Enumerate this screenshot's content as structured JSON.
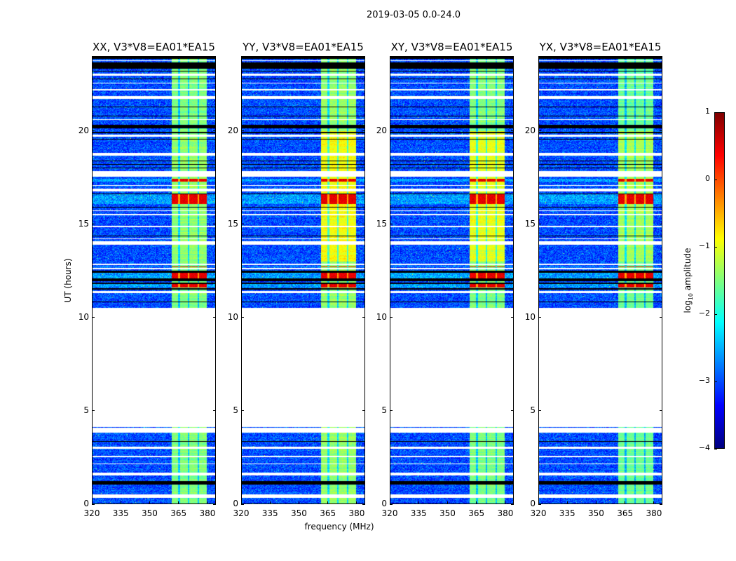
{
  "chart_data": {
    "type": "heatmap",
    "title": "2019-03-05 0.0-24.0",
    "xlabel": "frequency (MHz)",
    "ylabel": "UT (hours)",
    "xlim": [
      320,
      384.4
    ],
    "ylim": [
      0,
      24
    ],
    "xticks": [
      320,
      335,
      350,
      365,
      380
    ],
    "yticks": [
      0,
      5,
      10,
      15,
      20
    ],
    "panels": [
      {
        "title": "XX, V3*V8=EA01*EA15",
        "rfi_level": -1.5,
        "rfi_bright_level": -1.4
      },
      {
        "title": "YY, V3*V8=EA01*EA15",
        "rfi_level": -1.4,
        "rfi_bright_level": -0.9
      },
      {
        "title": "XY, V3*V8=EA01*EA15",
        "rfi_level": -1.5,
        "rfi_bright_level": -1.0
      },
      {
        "title": "YX, V3*V8=EA01*EA15",
        "rfi_level": -1.6,
        "rfi_bright_level": -1.3
      }
    ],
    "background_level": -3.0,
    "rfi_band_mhz": [
      361.5,
      380
    ],
    "rfi_dark_channels_mhz": [
      365.5,
      370.5,
      375.5
    ],
    "bright_hours": [
      13.0,
      20.0
    ],
    "time_segments": [
      {
        "from": 0.3,
        "to": 0.5,
        "state": "flagged"
      },
      {
        "from": 1.0,
        "to": 1.2,
        "state": "zero"
      },
      {
        "from": 1.5,
        "to": 1.65,
        "state": "flagged"
      },
      {
        "from": 2.1,
        "to": 2.15,
        "state": "flagged"
      },
      {
        "from": 2.5,
        "to": 2.55,
        "state": "flagged"
      },
      {
        "from": 2.95,
        "to": 3.05,
        "state": "flagged"
      },
      {
        "from": 3.3,
        "to": 3.35,
        "state": "zero"
      },
      {
        "from": 3.8,
        "to": 4.07,
        "state": "flagged"
      },
      {
        "from": 4.12,
        "to": 10.5,
        "state": "flagged"
      },
      {
        "from": 10.8,
        "to": 10.85,
        "state": "zero"
      },
      {
        "from": 11.3,
        "to": 11.4,
        "state": "flagged"
      },
      {
        "from": 11.5,
        "to": 11.55,
        "state": "zero"
      },
      {
        "from": 11.6,
        "to": 11.8,
        "state": "strong"
      },
      {
        "from": 11.8,
        "to": 11.85,
        "state": "zero"
      },
      {
        "from": 11.95,
        "to": 12.1,
        "state": "zero"
      },
      {
        "from": 12.1,
        "to": 12.4,
        "state": "strong"
      },
      {
        "from": 12.4,
        "to": 12.5,
        "state": "zero"
      },
      {
        "from": 12.6,
        "to": 12.65,
        "state": "flagged"
      },
      {
        "from": 12.7,
        "to": 12.75,
        "state": "strong"
      },
      {
        "from": 12.8,
        "to": 12.9,
        "state": "flagged"
      },
      {
        "from": 13.9,
        "to": 14.1,
        "state": "flagged"
      },
      {
        "from": 14.2,
        "to": 14.25,
        "state": "flagged"
      },
      {
        "from": 14.35,
        "to": 14.4,
        "state": "zero"
      },
      {
        "from": 14.85,
        "to": 14.92,
        "state": "flagged"
      },
      {
        "from": 15.5,
        "to": 15.55,
        "state": "flagged"
      },
      {
        "from": 15.7,
        "to": 15.75,
        "state": "flagged"
      },
      {
        "from": 15.9,
        "to": 15.95,
        "state": "zero"
      },
      {
        "from": 16.1,
        "to": 16.6,
        "state": "strong"
      },
      {
        "from": 16.6,
        "to": 16.65,
        "state": "zero"
      },
      {
        "from": 16.75,
        "to": 16.9,
        "state": "flagged"
      },
      {
        "from": 17.05,
        "to": 17.12,
        "state": "flagged"
      },
      {
        "from": 17.3,
        "to": 17.45,
        "state": "strong"
      },
      {
        "from": 17.54,
        "to": 17.84,
        "state": "flagged"
      },
      {
        "from": 18.0,
        "to": 18.04,
        "state": "zero"
      },
      {
        "from": 18.2,
        "to": 18.24,
        "state": "zero"
      },
      {
        "from": 18.4,
        "to": 18.44,
        "state": "zero"
      },
      {
        "from": 18.7,
        "to": 18.85,
        "state": "flagged"
      },
      {
        "from": 19.55,
        "to": 19.6,
        "state": "zero"
      },
      {
        "from": 19.7,
        "to": 19.8,
        "state": "flagged"
      },
      {
        "from": 19.9,
        "to": 19.95,
        "state": "zero"
      },
      {
        "from": 20.15,
        "to": 20.35,
        "state": "zero"
      },
      {
        "from": 20.6,
        "to": 20.65,
        "state": "flagged"
      },
      {
        "from": 20.8,
        "to": 20.84,
        "state": "zero"
      },
      {
        "from": 21.3,
        "to": 21.34,
        "state": "zero"
      },
      {
        "from": 21.75,
        "to": 21.9,
        "state": "flagged"
      },
      {
        "from": 22.2,
        "to": 22.25,
        "state": "flagged"
      },
      {
        "from": 22.55,
        "to": 22.6,
        "state": "flagged"
      },
      {
        "from": 22.8,
        "to": 22.84,
        "state": "zero"
      },
      {
        "from": 23.0,
        "to": 23.08,
        "state": "flagged"
      },
      {
        "from": 23.2,
        "to": 23.25,
        "state": "zero"
      },
      {
        "from": 23.35,
        "to": 23.7,
        "state": "zero"
      },
      {
        "from": 23.78,
        "to": 23.83,
        "state": "flagged"
      },
      {
        "from": 23.9,
        "to": 24.0,
        "state": "zero"
      }
    ],
    "colorbar": {
      "label_prefix": "log",
      "label_sub": "10",
      "label_suffix": " amplitude",
      "range": [
        -4,
        1
      ],
      "ticks": [
        -4,
        -3,
        -2,
        -1,
        0,
        1
      ],
      "tick_labels": [
        "−4",
        "−3",
        "−2",
        "−1",
        "0",
        "1"
      ],
      "colormap": "jet"
    }
  }
}
